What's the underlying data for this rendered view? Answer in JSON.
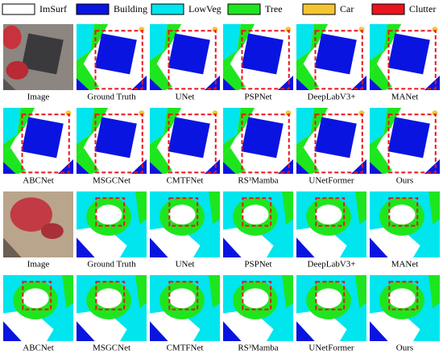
{
  "legend": [
    {
      "label": "ImSurf",
      "color": "#ffffff"
    },
    {
      "label": "Building",
      "color": "#0a14e0"
    },
    {
      "label": "LowVeg",
      "color": "#00e5ee"
    },
    {
      "label": "Tree",
      "color": "#1ee61e"
    },
    {
      "label": "Car",
      "color": "#f5c531"
    },
    {
      "label": "Clutter",
      "color": "#e8141e"
    }
  ],
  "panels": [
    {
      "captions": [
        "Image",
        "Ground Truth",
        "UNet",
        "PSPNet",
        "DeepLabV3+",
        "MANet"
      ]
    },
    {
      "captions": [
        "ABCNet",
        "MSGCNet",
        "CMTFNet",
        "RS³Mamba",
        "UNetFormer",
        "Ours"
      ]
    },
    {
      "captions": [
        "Image",
        "Ground Truth",
        "UNet",
        "PSPNet",
        "DeepLabV3+",
        "MANet"
      ]
    },
    {
      "captions": [
        "ABCNet",
        "MSGCNet",
        "CMTFNet",
        "RS³Mamba",
        "UNetFormer",
        "Ours"
      ]
    }
  ]
}
